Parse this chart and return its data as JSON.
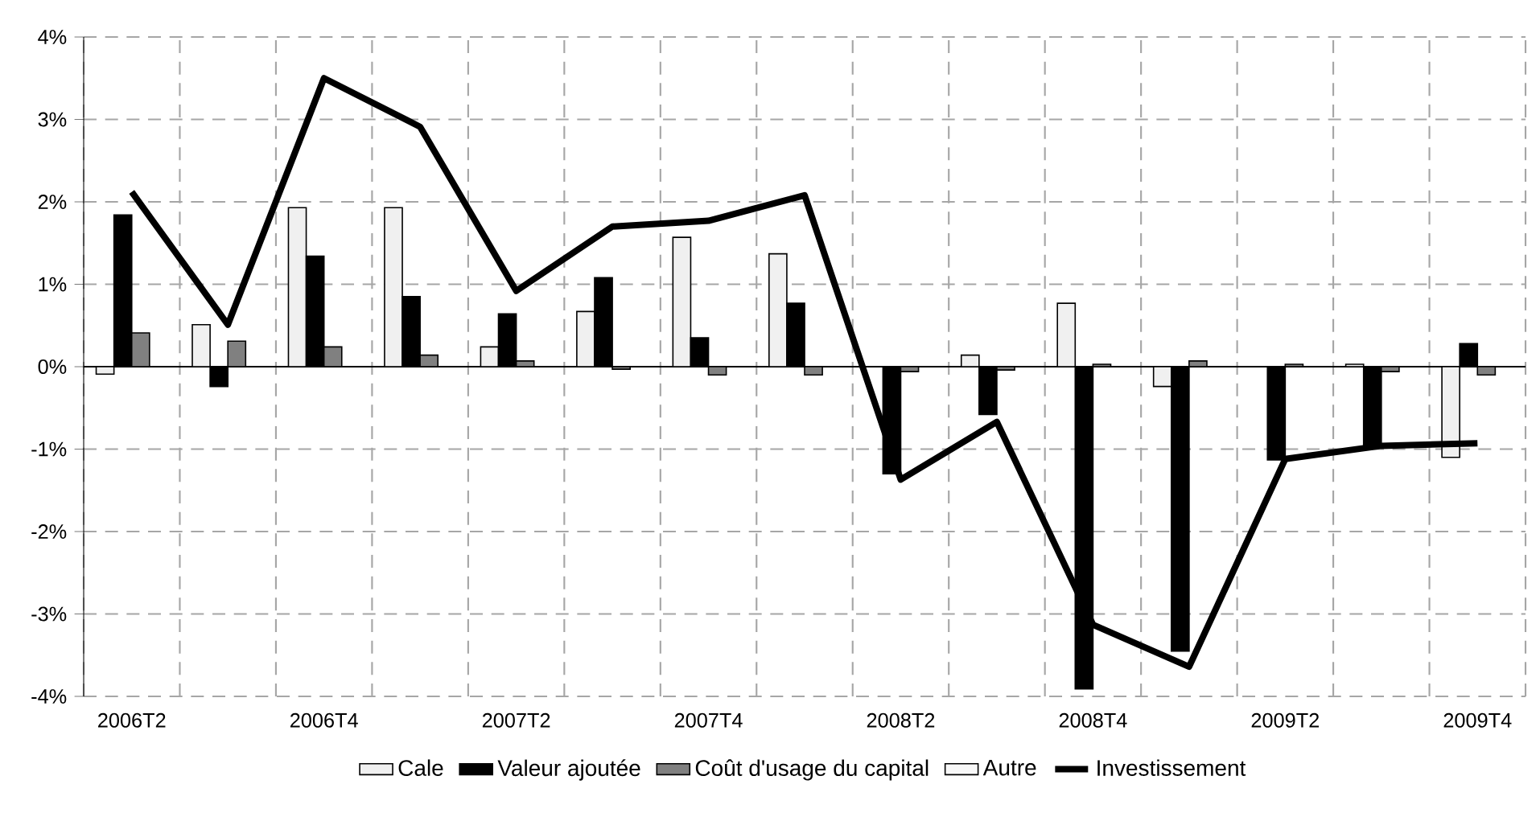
{
  "chart_data": {
    "type": "bar",
    "categories": [
      "2006T2",
      null,
      "2006T4",
      null,
      "2007T2",
      null,
      "2007T4",
      null,
      "2008T2",
      null,
      "2008T4",
      null,
      "2009T2",
      null,
      "2009T4"
    ],
    "series": [
      {
        "name": "Cale",
        "color": "#f0f0f0",
        "values": [
          -0.09,
          0.51,
          1.93,
          1.93,
          0.24,
          0.67,
          1.57,
          1.37,
          null,
          0.14,
          0.77,
          -0.24,
          null,
          0.03,
          -1.1
        ]
      },
      {
        "name": "Valeur ajoutée",
        "color": "#000000",
        "values": [
          1.84,
          -0.24,
          1.34,
          0.85,
          0.64,
          1.08,
          0.35,
          0.77,
          -1.3,
          -0.58,
          -3.91,
          -3.45,
          -1.13,
          -0.95,
          0.28
        ]
      },
      {
        "name": "Coût d'usage du capital",
        "color": "#808080",
        "values": [
          0.41,
          0.31,
          0.24,
          0.14,
          0.07,
          -0.03,
          -0.1,
          -0.1,
          -0.06,
          -0.04,
          0.03,
          0.07,
          0.03,
          -0.06,
          -0.1
        ]
      },
      {
        "name": "Autre",
        "color": "#f8f8f8",
        "values": [
          null,
          null,
          null,
          null,
          null,
          null,
          null,
          null,
          null,
          null,
          null,
          null,
          null,
          null,
          null
        ]
      },
      {
        "name": "Investissement",
        "type": "line",
        "color": "#000000",
        "values": [
          2.12,
          0.51,
          3.5,
          2.91,
          0.92,
          1.7,
          1.77,
          2.08,
          -1.37,
          -0.67,
          -3.13,
          -3.64,
          -1.12,
          -0.96,
          -0.93
        ]
      }
    ],
    "ylim": [
      -4,
      4
    ],
    "yticks": [
      {
        "value": -4,
        "label": "-4%"
      },
      {
        "value": -3,
        "label": "-3%"
      },
      {
        "value": -2,
        "label": "-2%"
      },
      {
        "value": -1,
        "label": "-1%"
      },
      {
        "value": 0,
        "label": "0%"
      },
      {
        "value": 1,
        "label": "1%"
      },
      {
        "value": 2,
        "label": "2%"
      },
      {
        "value": 3,
        "label": "3%"
      },
      {
        "value": 4,
        "label": "4%"
      }
    ],
    "grid": true,
    "legend": "bottom"
  }
}
